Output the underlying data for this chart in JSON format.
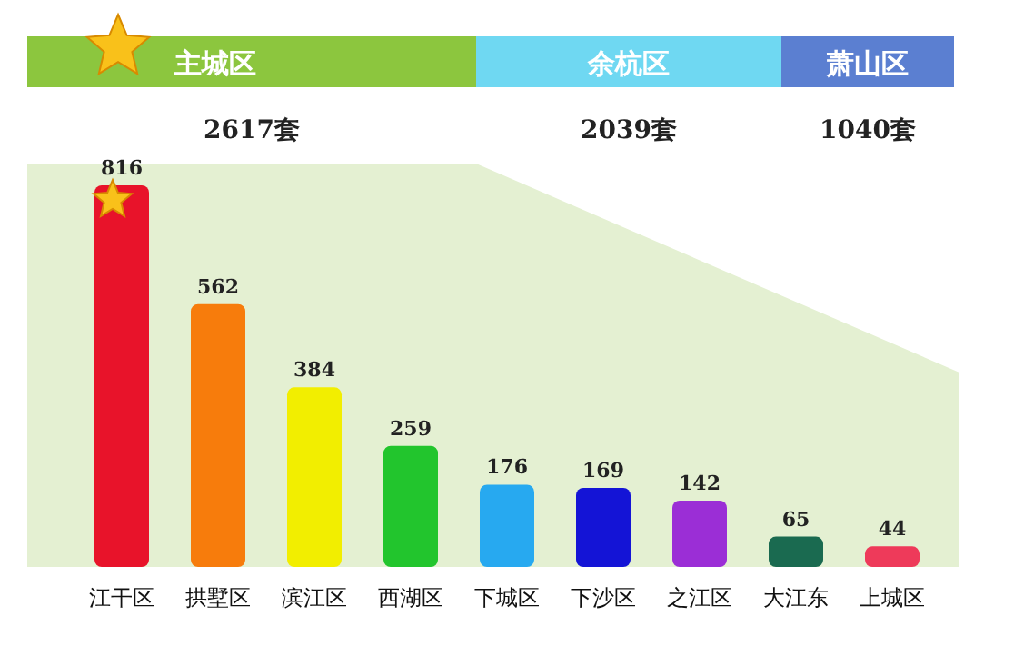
{
  "chart_data": {
    "type": "bar",
    "categories": [
      "江干区",
      "拱墅区",
      "滨江区",
      "西湖区",
      "下城区",
      "下沙区",
      "之江区",
      "大江东",
      "上城区"
    ],
    "values": [
      816,
      562,
      384,
      259,
      176,
      169,
      142,
      65,
      44
    ],
    "colors": [
      "#e8132a",
      "#f77c0c",
      "#f2ee00",
      "#22c52d",
      "#27a9f0",
      "#1414d6",
      "#9b2ed6",
      "#1a6a50",
      "#ee3a5a"
    ],
    "data_labels": true,
    "annotations": [
      "主城区",
      "2617套",
      "余杭区",
      "2039套",
      "萧山区",
      "1040套"
    ]
  }
}
